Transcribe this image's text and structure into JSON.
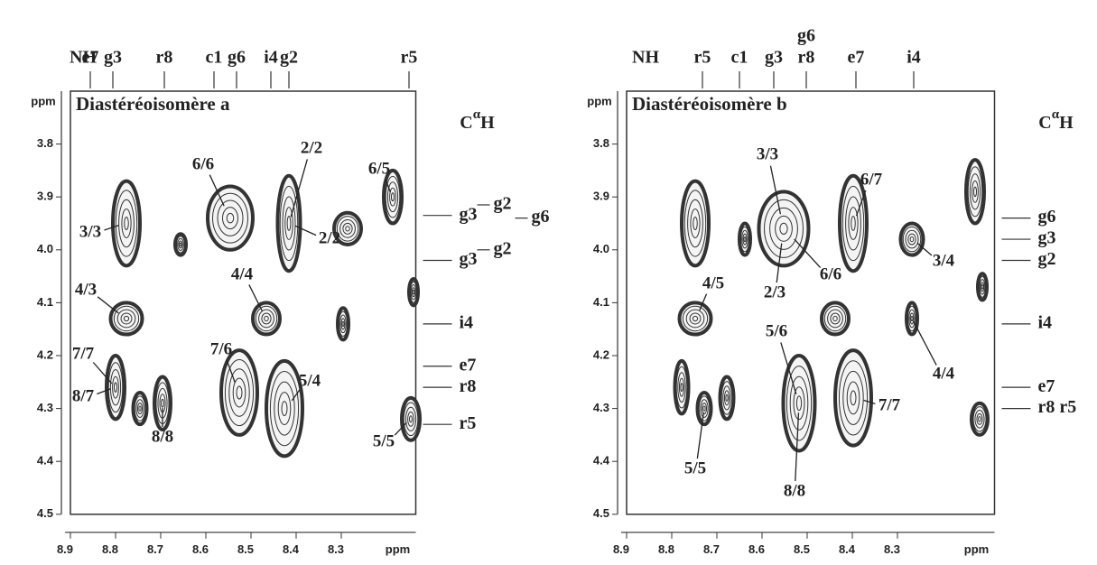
{
  "chart_data": [
    {
      "type": "contour",
      "title": "Diastéréoisomère a",
      "xlabel": "ppm",
      "ylabel": "ppm",
      "color": "#333333",
      "top_heading": "NH",
      "right_heading": {
        "base": "C",
        "sup": "α",
        "tail": "H"
      },
      "xlim": [
        8.9,
        8.135
      ],
      "ylim": [
        3.7,
        4.5
      ],
      "xticks": [
        8.9,
        8.8,
        8.7,
        8.6,
        8.5,
        8.4,
        8.3
      ],
      "yticks": [
        3.8,
        3.9,
        {
          "value": 4,
          "label": "4.0"
        },
        4.1,
        4.2,
        4.3,
        4.4,
        4.5
      ],
      "top_labels": [
        {
          "text": "e7",
          "x": 8.856
        },
        {
          "text": "g3",
          "x": 8.806
        },
        {
          "text": "r8",
          "x": 8.692
        },
        {
          "text": "c1",
          "x": 8.582
        },
        {
          "text": "g6",
          "x": 8.532
        },
        {
          "text": "i4",
          "x": 8.456
        },
        {
          "text": "g2",
          "x": 8.416
        },
        {
          "text": "r5",
          "x": 8.15
        }
      ],
      "right_labels": [
        {
          "text": "g3",
          "y": 3.935
        },
        {
          "text": "g2",
          "y": 3.915
        },
        {
          "text": "g6",
          "y": 3.94
        },
        {
          "text": "g3",
          "y": 4.02
        },
        {
          "text": "g2",
          "y": 4.0
        },
        {
          "text": "i4",
          "y": 4.14
        },
        {
          "text": "e7",
          "y": 4.22
        },
        {
          "text": "r8",
          "y": 4.26
        },
        {
          "text": "r5",
          "y": 4.33
        }
      ],
      "peaks": [
        {
          "x": 8.776,
          "y": 3.95,
          "rx": 0.03,
          "ry": 0.08
        },
        {
          "x": 8.656,
          "y": 3.99,
          "rx": 0.012,
          "ry": 0.02
        },
        {
          "x": 8.546,
          "y": 3.94,
          "rx": 0.05,
          "ry": 0.06
        },
        {
          "x": 8.416,
          "y": 3.95,
          "rx": 0.025,
          "ry": 0.09
        },
        {
          "x": 8.286,
          "y": 3.96,
          "rx": 0.03,
          "ry": 0.03
        },
        {
          "x": 8.186,
          "y": 3.9,
          "rx": 0.02,
          "ry": 0.05
        },
        {
          "x": 8.14,
          "y": 4.08,
          "rx": 0.01,
          "ry": 0.025
        },
        {
          "x": 8.776,
          "y": 4.13,
          "rx": 0.035,
          "ry": 0.03
        },
        {
          "x": 8.466,
          "y": 4.13,
          "rx": 0.03,
          "ry": 0.03
        },
        {
          "x": 8.296,
          "y": 4.14,
          "rx": 0.012,
          "ry": 0.03
        },
        {
          "x": 8.8,
          "y": 4.26,
          "rx": 0.02,
          "ry": 0.06
        },
        {
          "x": 8.746,
          "y": 4.3,
          "rx": 0.015,
          "ry": 0.03
        },
        {
          "x": 8.696,
          "y": 4.29,
          "rx": 0.018,
          "ry": 0.05
        },
        {
          "x": 8.526,
          "y": 4.27,
          "rx": 0.04,
          "ry": 0.08
        },
        {
          "x": 8.426,
          "y": 4.3,
          "rx": 0.04,
          "ry": 0.09
        },
        {
          "x": 8.146,
          "y": 4.32,
          "rx": 0.02,
          "ry": 0.04
        }
      ],
      "annotations": [
        "6/6",
        "2/2",
        "6/5",
        "3/3",
        "2/2",
        "4/3",
        "4/4",
        "7/7",
        "7/6",
        "8/7",
        "8/8",
        "5/4",
        "5/5"
      ]
    },
    {
      "type": "contour",
      "title": "Diastéréoisomère b",
      "xlabel": "ppm",
      "ylabel": "ppm",
      "color": "#333333",
      "top_heading": "NH",
      "right_heading": {
        "base": "C",
        "sup": "α",
        "tail": "H"
      },
      "xlim": [
        8.9,
        8.085
      ],
      "ylim": [
        3.7,
        4.5
      ],
      "xticks": [
        8.9,
        8.8,
        8.7,
        8.6,
        8.5,
        8.4,
        8.3
      ],
      "yticks": [
        3.8,
        3.9,
        {
          "value": 4,
          "label": "4.0"
        },
        4.1,
        4.2,
        4.3,
        4.4,
        4.5
      ],
      "top_labels": [
        {
          "text": "r5",
          "x": 8.732
        },
        {
          "text": "c1",
          "x": 8.65
        },
        {
          "text": "g3",
          "x": 8.574
        },
        {
          "text": "g6",
          "x": 8.502
        },
        {
          "text": "r8",
          "x": 8.502
        },
        {
          "text": "e7",
          "x": 8.392
        },
        {
          "text": "i4",
          "x": 8.264
        }
      ],
      "right_labels": [
        {
          "text": "g6",
          "y": 3.94
        },
        {
          "text": "g3",
          "y": 3.98
        },
        {
          "text": "g2",
          "y": 4.02
        },
        {
          "text": "i4",
          "y": 4.14
        },
        {
          "text": "e7",
          "y": 4.26
        },
        {
          "text": "r8 r5",
          "y": 4.3
        }
      ],
      "peaks": [
        {
          "x": 8.748,
          "y": 3.95,
          "rx": 0.03,
          "ry": 0.08
        },
        {
          "x": 8.638,
          "y": 3.98,
          "rx": 0.012,
          "ry": 0.03
        },
        {
          "x": 8.552,
          "y": 3.96,
          "rx": 0.055,
          "ry": 0.07
        },
        {
          "x": 8.398,
          "y": 3.95,
          "rx": 0.03,
          "ry": 0.09
        },
        {
          "x": 8.268,
          "y": 3.98,
          "rx": 0.025,
          "ry": 0.03
        },
        {
          "x": 8.128,
          "y": 3.89,
          "rx": 0.02,
          "ry": 0.06
        },
        {
          "x": 8.112,
          "y": 4.07,
          "rx": 0.01,
          "ry": 0.025
        },
        {
          "x": 8.748,
          "y": 4.13,
          "rx": 0.035,
          "ry": 0.03
        },
        {
          "x": 8.438,
          "y": 4.13,
          "rx": 0.03,
          "ry": 0.03
        },
        {
          "x": 8.268,
          "y": 4.13,
          "rx": 0.012,
          "ry": 0.03
        },
        {
          "x": 8.778,
          "y": 4.26,
          "rx": 0.015,
          "ry": 0.05
        },
        {
          "x": 8.728,
          "y": 4.3,
          "rx": 0.015,
          "ry": 0.03
        },
        {
          "x": 8.678,
          "y": 4.28,
          "rx": 0.015,
          "ry": 0.04
        },
        {
          "x": 8.518,
          "y": 4.29,
          "rx": 0.035,
          "ry": 0.09
        },
        {
          "x": 8.398,
          "y": 4.28,
          "rx": 0.04,
          "ry": 0.09
        },
        {
          "x": 8.118,
          "y": 4.32,
          "rx": 0.018,
          "ry": 0.03
        }
      ],
      "annotations": [
        "3/3",
        "6/7",
        "2/3",
        "6/6",
        "3/4",
        "4/5",
        "5/6",
        "4/4",
        "7/7",
        "5/5",
        "8/8"
      ]
    }
  ]
}
